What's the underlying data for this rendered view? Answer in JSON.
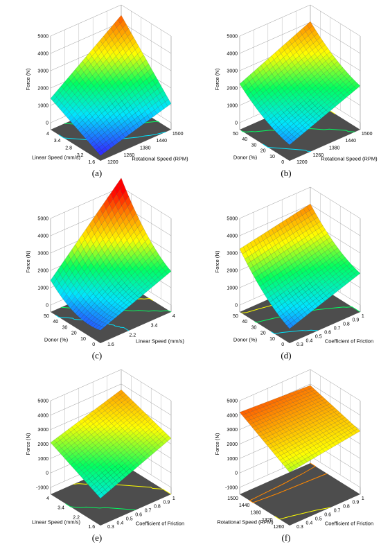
{
  "figure": {
    "colormap": [
      "#3030ff",
      "#00e5ff",
      "#00ff60",
      "#ffff00",
      "#ff8800",
      "#ff0000"
    ],
    "floor_color": "#4d4d4d",
    "grid": true
  },
  "chart_data": [
    {
      "label": "(a)",
      "type": "surface",
      "zlabel": "Force (N)",
      "zticks": [
        "5000",
        "4000",
        "3000",
        "2000",
        "1000",
        "0"
      ],
      "zlim": [
        0,
        5000
      ],
      "leftAxis": {
        "label": "Linear Speed (mm/s)",
        "ticks": [
          "4",
          "3.4",
          "2.8",
          "2.2",
          "1.6"
        ],
        "range": [
          4.0,
          1.0
        ]
      },
      "rightAxis": {
        "label": "Rotational Speed (RPM)",
        "ticks": [
          "1200",
          "1260",
          "1380",
          "1440",
          "1500"
        ],
        "range": [
          1200,
          1500
        ]
      },
      "surface": {
        "back": 4400,
        "left": 1400,
        "right": 1100,
        "front": -100
      }
    },
    {
      "label": "(b)",
      "type": "surface",
      "zlabel": "Force (N)",
      "zticks": [
        "5000",
        "4000",
        "3000",
        "2000",
        "1000",
        "0"
      ],
      "zlim": [
        0,
        5000
      ],
      "leftAxis": {
        "label": "Donor (%)",
        "ticks": [
          "50",
          "40",
          "30",
          "20",
          "10",
          "0"
        ],
        "range": [
          50,
          0
        ]
      },
      "rightAxis": {
        "label": "Rotational Speed (RPM)",
        "ticks": [
          "1200",
          "1260",
          "1380",
          "1440",
          "1500"
        ],
        "range": [
          1200,
          1500
        ]
      },
      "surface": {
        "back": 3700,
        "left": 1900,
        "right": 2100,
        "front": 500,
        "curve": 700
      }
    },
    {
      "label": "(c)",
      "type": "surface",
      "zlabel": "Force (N)",
      "zticks": [
        "5000",
        "4000",
        "3000",
        "2000",
        "1000",
        "0"
      ],
      "zlim": [
        0,
        5000
      ],
      "leftAxis": {
        "label": "Donor (%)",
        "ticks": [
          "50",
          "40",
          "30",
          "20",
          "10",
          "0"
        ],
        "range": [
          50,
          0
        ]
      },
      "rightAxis": {
        "label": "Linear Speed (mm/s)",
        "ticks": [
          "1.6",
          "2.2",
          "3.4",
          "4"
        ],
        "range": [
          1.0,
          4.0
        ]
      },
      "surface": {
        "back": 4900,
        "left": 800,
        "right": 1900,
        "front": 300,
        "curve": 1300
      }
    },
    {
      "label": "(d)",
      "type": "surface",
      "zlabel": "Force (N)",
      "zticks": [
        "5000",
        "4000",
        "3000",
        "2000",
        "1000",
        "0"
      ],
      "zlim": [
        0,
        5000
      ],
      "leftAxis": {
        "label": "Donor (%)",
        "ticks": [
          "50",
          "40",
          "30",
          "20",
          "10",
          "0"
        ],
        "range": [
          50,
          0
        ]
      },
      "rightAxis": {
        "label": "Coefficient of Friction",
        "ticks": [
          "0.3",
          "0.4",
          "0.5",
          "0.6",
          "0.7",
          "0.8",
          "0.9",
          "1"
        ],
        "range": [
          0.3,
          1.0
        ]
      },
      "surface": {
        "back": 3600,
        "left": 2800,
        "right": 1800,
        "front": 400,
        "curve": 900
      }
    },
    {
      "label": "(e)",
      "type": "surface",
      "zlabel": "Force (N)",
      "zticks": [
        "5000",
        "4000",
        "3000",
        "2000",
        "1000",
        "0",
        "-1000"
      ],
      "zlim": [
        -1000,
        5000
      ],
      "leftAxis": {
        "label": "Linear Speed (mm/s)",
        "ticks": [
          "4",
          "3.4",
          "2.2",
          "1.6"
        ],
        "range": [
          4.0,
          1.0
        ]
      },
      "rightAxis": {
        "label": "Coefficient of Friction",
        "ticks": [
          "0.3",
          "0.4",
          "0.5",
          "0.6",
          "0.7",
          "0.8",
          "0.9",
          "1"
        ],
        "range": [
          0.3,
          1.0
        ]
      },
      "surface": {
        "back": 3600,
        "left": 2100,
        "right": 2400,
        "front": 400
      }
    },
    {
      "label": "(f)",
      "type": "surface",
      "zlabel": "Force (N)",
      "zticks": [
        "5000",
        "4000",
        "3000",
        "2000",
        "1000",
        "0",
        "-1000"
      ],
      "zlim": [
        -1000,
        5000
      ],
      "leftAxis": {
        "label": "Rotational Speed (RPM)",
        "ticks": [
          "1500",
          "1440",
          "1380",
          "1320",
          "1260"
        ],
        "range": [
          1500,
          1200
        ]
      },
      "rightAxis": {
        "label": "Coefficient of Friction",
        "ticks": [
          "0.3",
          "0.4",
          "0.5",
          "0.6",
          "0.7",
          "0.8",
          "0.9",
          "1"
        ],
        "range": [
          0.3,
          1.0
        ]
      },
      "surface": {
        "back": 3900,
        "left": 4200,
        "right": 2900,
        "front": 2200
      }
    }
  ]
}
